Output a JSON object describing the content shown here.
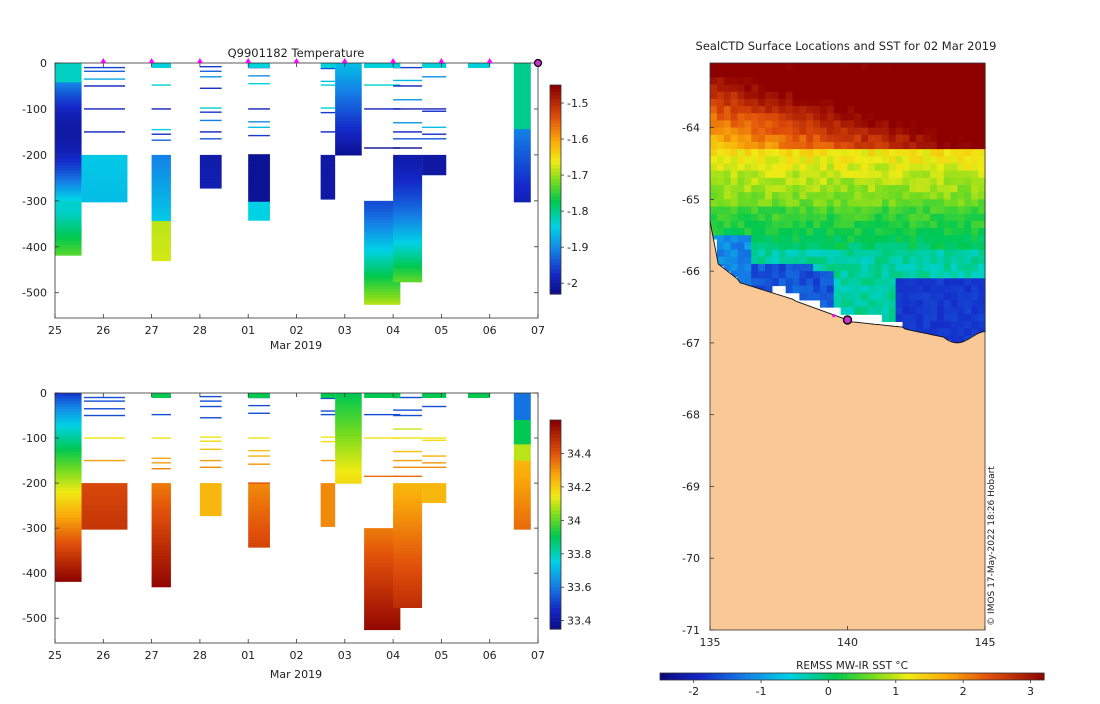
{
  "temperature_title": "Q9901182  Temperature",
  "map_title": "SealCTD Surface Locations and SST for 02 Mar 2019",
  "month_label": "Mar 2019",
  "sst_colorbar_label": "REMSS MW-IR SST °C",
  "watermark": "© IMOS 17-May-2022 18:26 Hobart",
  "colors": {
    "land": "#fac896",
    "marker": "#ff00ff",
    "current_location": "#cc33cc"
  },
  "chart_data": [
    {
      "type": "heatmap",
      "name": "temperature-section",
      "title": "Q9901182  Temperature",
      "xlabel": "Mar 2019",
      "ylabel": "",
      "x_ticks": [
        "25",
        "26",
        "27",
        "28",
        "01",
        "02",
        "03",
        "04",
        "05",
        "06",
        "07"
      ],
      "x_range": [
        0,
        10
      ],
      "y_ticks": [
        "0",
        "-100",
        "-200",
        "-300",
        "-400",
        "-500"
      ],
      "y_range": [
        -555,
        0
      ],
      "colorbar": {
        "ticks": [
          "-1.5",
          "-1.6",
          "-1.7",
          "-1.8",
          "-1.9",
          "-2"
        ],
        "range": [
          -2.03,
          -1.45
        ]
      },
      "surface_markers_day": [
        1,
        2,
        3,
        4,
        5,
        6,
        7,
        8,
        9
      ]
    },
    {
      "type": "heatmap",
      "name": "salinity-section",
      "xlabel": "Mar 2019",
      "x_ticks": [
        "25",
        "26",
        "27",
        "28",
        "01",
        "02",
        "03",
        "04",
        "05",
        "06",
        "07"
      ],
      "x_range": [
        0,
        10
      ],
      "y_ticks": [
        "0",
        "-100",
        "-200",
        "-300",
        "-400",
        "-500"
      ],
      "y_range": [
        -555,
        0
      ],
      "colorbar": {
        "ticks": [
          "34.4",
          "34.2",
          "34",
          "33.8",
          "33.6",
          "33.4"
        ],
        "range": [
          33.35,
          34.6
        ]
      }
    },
    {
      "type": "heatmap",
      "name": "sst-map",
      "title": "SealCTD Surface Locations and SST for 02 Mar 2019",
      "xlabel": "",
      "x_ticks": [
        "135",
        "140",
        "145"
      ],
      "x_range": [
        135,
        145
      ],
      "y_ticks": [
        "-64",
        "-65",
        "-66",
        "-67",
        "-68",
        "-69",
        "-70",
        "-71"
      ],
      "y_range": [
        -71,
        -63.1
      ],
      "colorbar": {
        "label": "REMSS MW-IR SST °C",
        "ticks": [
          "-2",
          "-1",
          "0",
          "1",
          "2",
          "3"
        ],
        "range": [
          -2.5,
          3.2
        ]
      },
      "tracks": [
        {
          "lon": 139.5,
          "lat": -66.62
        }
      ],
      "current_location": {
        "lon": 140.0,
        "lat": -66.68
      }
    }
  ]
}
